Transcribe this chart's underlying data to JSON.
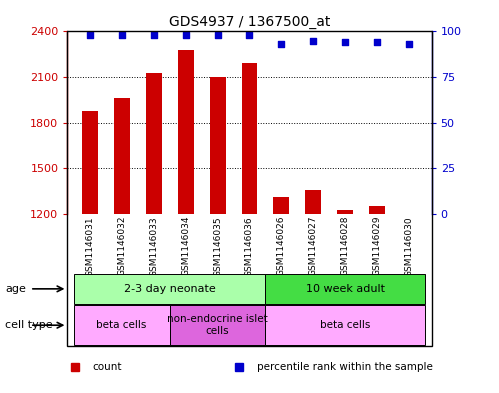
{
  "title": "GDS4937 / 1367500_at",
  "samples": [
    "GSM1146031",
    "GSM1146032",
    "GSM1146033",
    "GSM1146034",
    "GSM1146035",
    "GSM1146036",
    "GSM1146026",
    "GSM1146027",
    "GSM1146028",
    "GSM1146029",
    "GSM1146030"
  ],
  "counts": [
    1880,
    1960,
    2130,
    2280,
    2100,
    2190,
    1310,
    1360,
    1230,
    1255,
    1200
  ],
  "percentiles": [
    98,
    98,
    98,
    98,
    98,
    98,
    93,
    95,
    94,
    94,
    93
  ],
  "ylim_left": [
    1200,
    2400
  ],
  "ylim_right": [
    0,
    100
  ],
  "yticks_left": [
    1200,
    1500,
    1800,
    2100,
    2400
  ],
  "yticks_right": [
    0,
    25,
    50,
    75,
    100
  ],
  "bar_color": "#cc0000",
  "dot_color": "#0000cc",
  "age_groups": [
    {
      "label": "2-3 day neonate",
      "start": 0,
      "end": 6,
      "color": "#aaffaa"
    },
    {
      "label": "10 week adult",
      "start": 6,
      "end": 11,
      "color": "#44dd44"
    }
  ],
  "cell_type_groups": [
    {
      "label": "beta cells",
      "start": 0,
      "end": 3,
      "color": "#ffaaff"
    },
    {
      "label": "non-endocrine islet\ncells",
      "start": 3,
      "end": 6,
      "color": "#dd66dd"
    },
    {
      "label": "beta cells",
      "start": 6,
      "end": 11,
      "color": "#ffaaff"
    }
  ],
  "legend_items": [
    {
      "label": "count",
      "color": "#cc0000",
      "marker": "s"
    },
    {
      "label": "percentile rank within the sample",
      "color": "#0000cc",
      "marker": "s"
    }
  ],
  "axis_label_color_left": "#cc0000",
  "axis_label_color_right": "#0000cc",
  "background_color": "#ffffff",
  "label_area_color": "#d0d0d0",
  "bar_width": 0.5
}
